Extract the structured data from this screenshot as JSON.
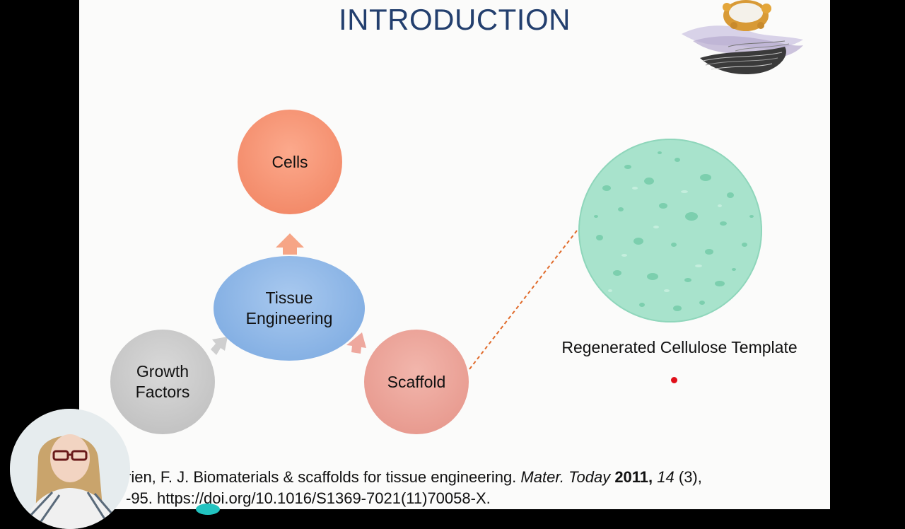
{
  "slide": {
    "title": "INTRODUCTION",
    "nodes": {
      "cells": "Cells",
      "tissue": "Tissue\nEngineering",
      "scaffold": "Scaffold",
      "growth": "Growth\nFactors"
    },
    "image_caption": "Regenerated Cellulose Template",
    "reference": {
      "line1_a": "rien, F. J. Biomaterials & scaffolds for tissue engineering. ",
      "line1_journal": "Mater. Today",
      "line1_year": " 2011,",
      "line1_vol": " 14",
      "line1_end": " (3),",
      "line2": "-95. https://doi.org/10.1016/S1369-7021(11)70058-X."
    }
  },
  "colors": {
    "title": "#233f6e",
    "cells": "#f38b6a",
    "tissue": "#86b1e4",
    "scaffold": "#e89b90",
    "growth": "#c3c3c3",
    "sponge": "#a8e3cc",
    "dashed_connector": "#e06a2a",
    "laser_pointer": "#e0101a"
  }
}
